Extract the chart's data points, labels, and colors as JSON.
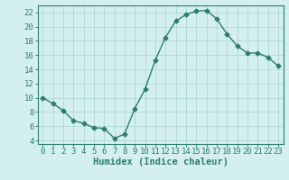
{
  "x": [
    0,
    1,
    2,
    3,
    4,
    5,
    6,
    7,
    8,
    9,
    10,
    11,
    12,
    13,
    14,
    15,
    16,
    17,
    18,
    19,
    20,
    21,
    22,
    23
  ],
  "y": [
    10,
    9.2,
    8.2,
    6.8,
    6.4,
    5.8,
    5.7,
    4.3,
    4.9,
    8.5,
    11.2,
    15.3,
    18.5,
    20.8,
    21.7,
    22.2,
    22.3,
    21.1,
    19.0,
    17.3,
    16.3,
    16.3,
    15.7,
    14.5
  ],
  "line_color": "#2e7d6e",
  "marker": "D",
  "marker_size": 2.5,
  "bg_color": "#d4f0ee",
  "grid_color": "#b0d8d4",
  "xlabel": "Humidex (Indice chaleur)",
  "xlim": [
    -0.5,
    23.5
  ],
  "ylim": [
    3.5,
    23.0
  ],
  "yticks": [
    4,
    6,
    8,
    10,
    12,
    14,
    16,
    18,
    20,
    22
  ],
  "xticks": [
    0,
    1,
    2,
    3,
    4,
    5,
    6,
    7,
    8,
    9,
    10,
    11,
    12,
    13,
    14,
    15,
    16,
    17,
    18,
    19,
    20,
    21,
    22,
    23
  ],
  "xlabel_fontsize": 7.5,
  "tick_fontsize": 6.5
}
